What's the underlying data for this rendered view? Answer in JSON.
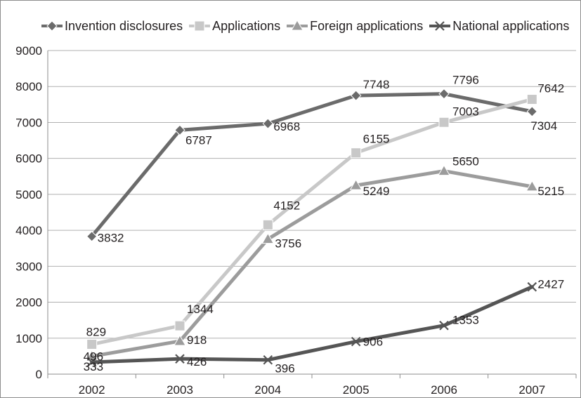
{
  "chart_data": {
    "type": "line",
    "categories": [
      "2002",
      "2003",
      "2004",
      "2005",
      "2006",
      "2007"
    ],
    "ylim": [
      0,
      9000
    ],
    "yticks": [
      0,
      1000,
      2000,
      3000,
      4000,
      5000,
      6000,
      7000,
      8000,
      9000
    ],
    "grid": true,
    "legend_position": "top",
    "series": [
      {
        "name": "Invention disclosures",
        "values": [
          3832,
          6787,
          6968,
          7748,
          7796,
          7304
        ],
        "color": "#6b6b6b",
        "marker": "diamond"
      },
      {
        "name": "Applications",
        "values": [
          829,
          1344,
          4152,
          6155,
          7003,
          7642
        ],
        "color": "#c8c8c8",
        "marker": "square"
      },
      {
        "name": "Foreign applications",
        "values": [
          496,
          918,
          3756,
          5249,
          5650,
          5215
        ],
        "color": "#9c9c9c",
        "marker": "triangle"
      },
      {
        "name": "National applications",
        "values": [
          333,
          426,
          396,
          906,
          1353,
          2427
        ],
        "color": "#555555",
        "marker": "x"
      }
    ]
  }
}
